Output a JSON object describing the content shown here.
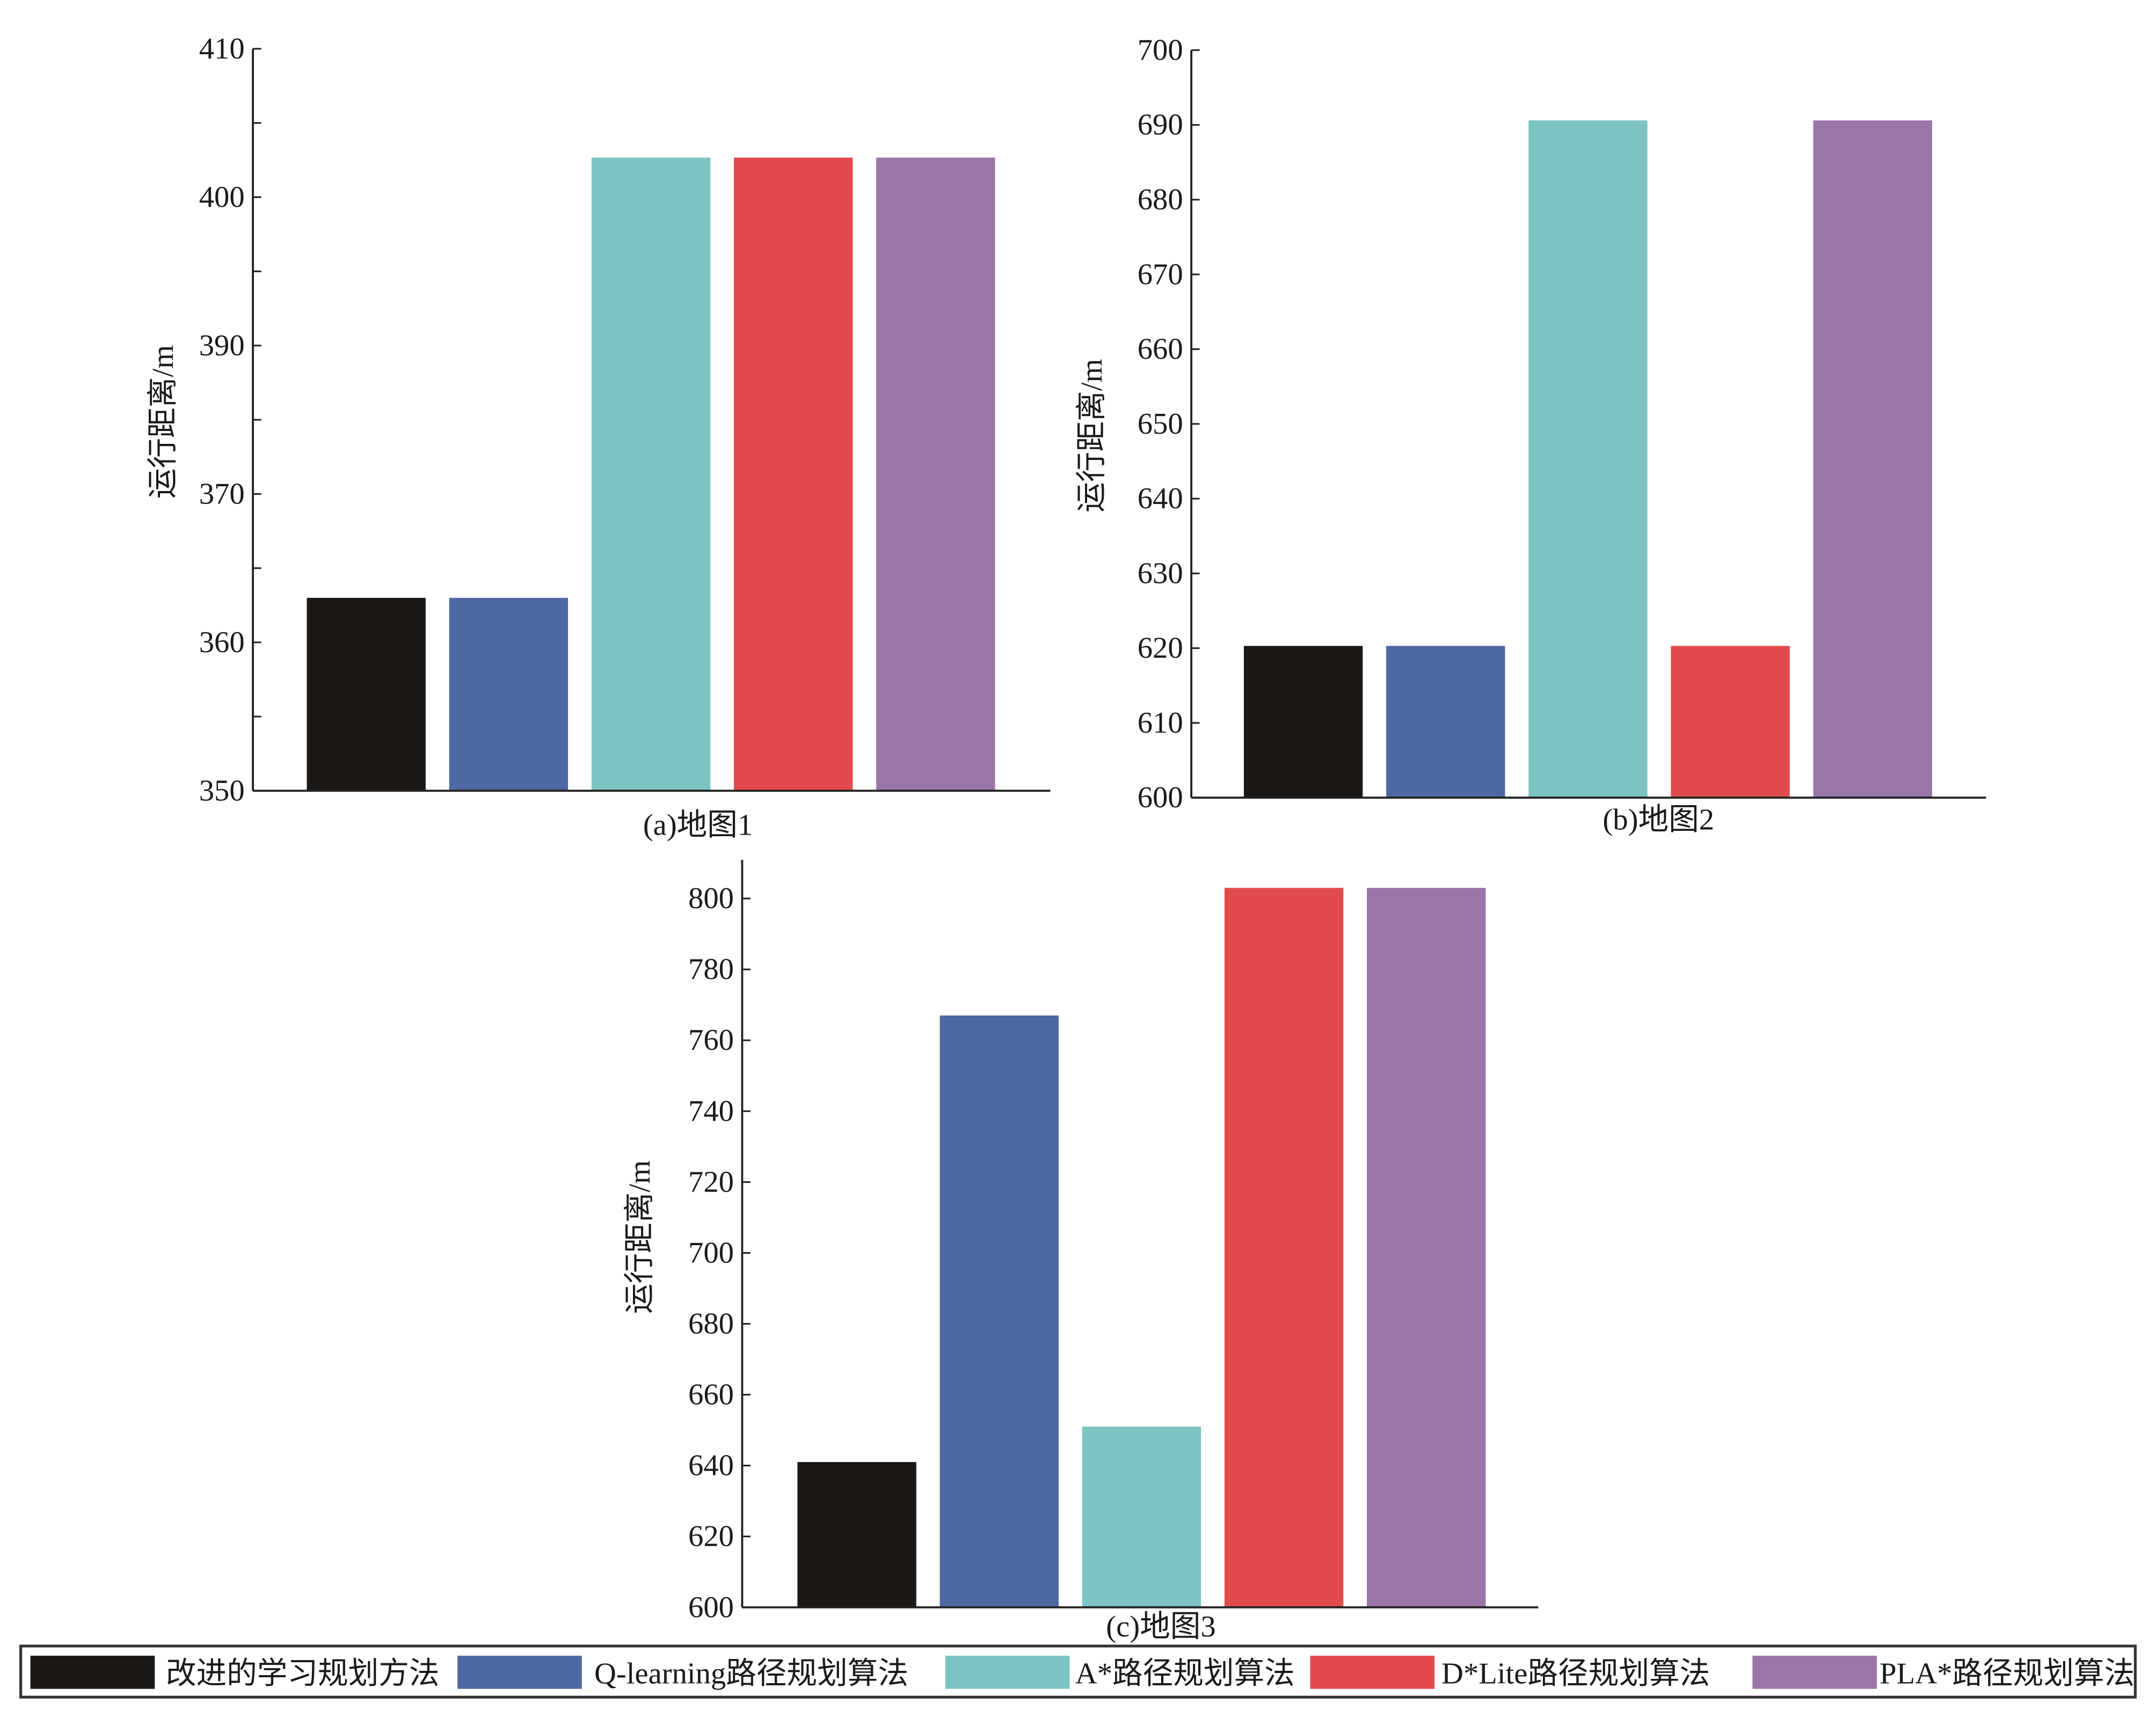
{
  "colors": [
    "#1c1815",
    "#4e68a2",
    "#7cc4c2",
    "#e24b4d",
    "#9a75a8"
  ],
  "legend": [
    "改进的学习规划方法",
    "Q-learning路径规划算法",
    "A*路径规划算法",
    "D*Lite路径规划算法",
    "PLA*路径规划算法"
  ],
  "chart_data": [
    {
      "type": "bar",
      "title": "(a)地图1",
      "ylabel": "运行距离/m",
      "ylim": [
        350,
        410
      ],
      "tick_labels": [
        "350",
        "360",
        "370",
        "390",
        "400",
        "410"
      ],
      "series": [
        "改进的学习规划方法",
        "Q-learning路径规划算法",
        "A*路径规划算法",
        "D*Lite路径规划算法",
        "PLA*路径规划算法"
      ],
      "values": [
        365.6,
        365.6,
        401.2,
        401.2,
        401.2
      ]
    },
    {
      "type": "bar",
      "title": "(b)地图2",
      "ylabel": "运行距离/m",
      "ylim": [
        600,
        700
      ],
      "tick_labels": [
        "600",
        "610",
        "620",
        "630",
        "640",
        "650",
        "660",
        "670",
        "680",
        "690",
        "700"
      ],
      "series": [
        "改进的学习规划方法",
        "Q-learning路径规划算法",
        "A*路径规划算法",
        "D*Lite路径规划算法",
        "PLA*路径规划算法"
      ],
      "values": [
        620.3,
        620.3,
        690.6,
        620.3,
        690.6
      ]
    },
    {
      "type": "bar",
      "title": "(c)地图3",
      "ylabel": "运行距离/m",
      "ylim": [
        600,
        800
      ],
      "tick_labels": [
        "600",
        "620",
        "640",
        "660",
        "680",
        "700",
        "720",
        "740",
        "760",
        "780",
        "800"
      ],
      "series": [
        "改进的学习规划方法",
        "Q-learning路径规划算法",
        "A*路径规划算法",
        "D*Lite路径规划算法",
        "PLA*路径规划算法"
      ],
      "values": [
        641,
        767,
        651,
        803,
        803
      ]
    }
  ]
}
